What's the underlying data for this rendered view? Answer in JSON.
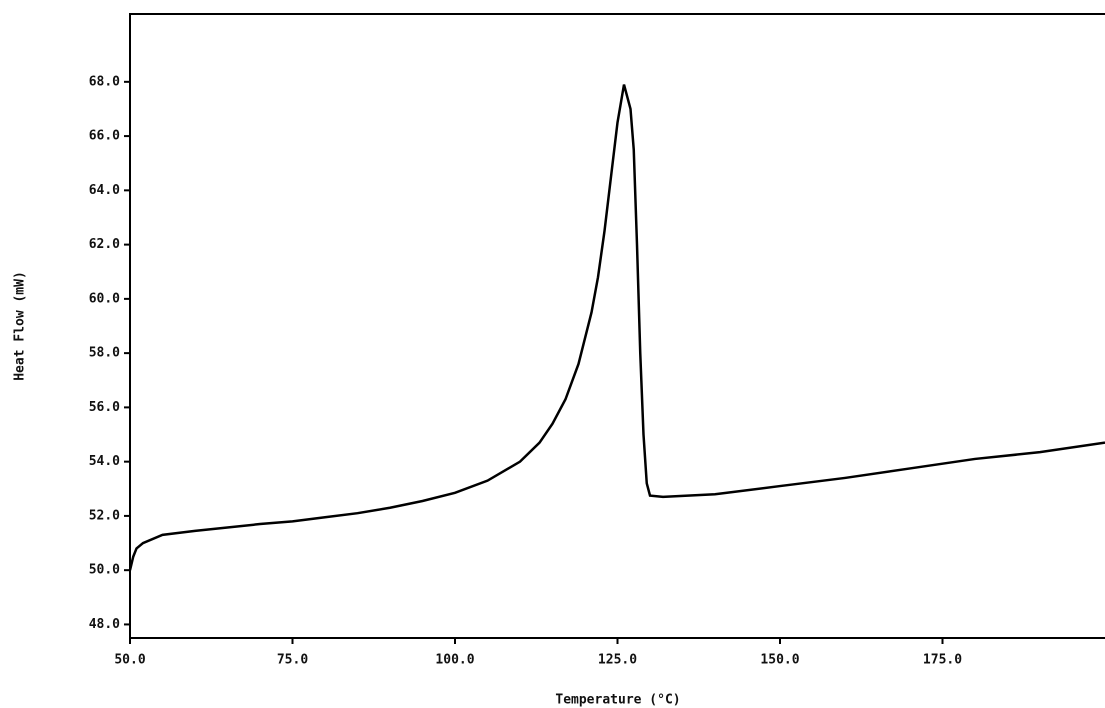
{
  "chart_data": {
    "type": "line",
    "x_label": "Temperature (°C)",
    "y_label": "Heat Flow (mW)",
    "x": [
      50,
      50.5,
      51,
      52,
      55,
      60,
      70,
      75,
      80,
      85,
      90,
      95,
      100,
      105,
      110,
      113,
      115,
      117,
      119,
      121,
      122,
      123,
      124,
      125,
      126,
      127,
      127.5,
      128,
      128.5,
      129,
      129.5,
      130,
      132,
      140,
      150,
      160,
      170,
      180,
      190,
      200
    ],
    "series": [
      {
        "color": "#000000",
        "values": [
          50.0,
          50.5,
          50.8,
          51.0,
          51.3,
          51.45,
          51.7,
          51.8,
          51.95,
          52.1,
          52.3,
          52.55,
          52.85,
          53.3,
          54.0,
          54.7,
          55.4,
          56.3,
          57.6,
          59.5,
          60.8,
          62.5,
          64.5,
          66.5,
          67.9,
          67.0,
          65.5,
          62.0,
          58.0,
          55.0,
          53.2,
          52.75,
          52.7,
          52.8,
          53.1,
          53.4,
          53.75,
          54.1,
          54.35,
          54.7
        ]
      }
    ],
    "xlim": [
      50,
      200
    ],
    "ylim": [
      47.5,
      70.5
    ],
    "xticks": [
      {
        "value": 50,
        "label": "50.0"
      },
      {
        "value": 75,
        "label": "75.0"
      },
      {
        "value": 100,
        "label": "100.0"
      },
      {
        "value": 125,
        "label": "125.0"
      },
      {
        "value": 150,
        "label": "150.0"
      },
      {
        "value": 175,
        "label": "175.0"
      }
    ],
    "yticks": [
      {
        "value": 48,
        "label": "48.0"
      },
      {
        "value": 50,
        "label": "50.0"
      },
      {
        "value": 52,
        "label": "52.0"
      },
      {
        "value": 54,
        "label": "54.0"
      },
      {
        "value": 56,
        "label": "56.0"
      },
      {
        "value": 58,
        "label": "58.0"
      },
      {
        "value": 60,
        "label": "60.0"
      },
      {
        "value": 62,
        "label": "62.0"
      },
      {
        "value": 64,
        "label": "64.0"
      },
      {
        "value": 66,
        "label": "66.0"
      },
      {
        "value": 68,
        "label": "68.0"
      }
    ]
  }
}
